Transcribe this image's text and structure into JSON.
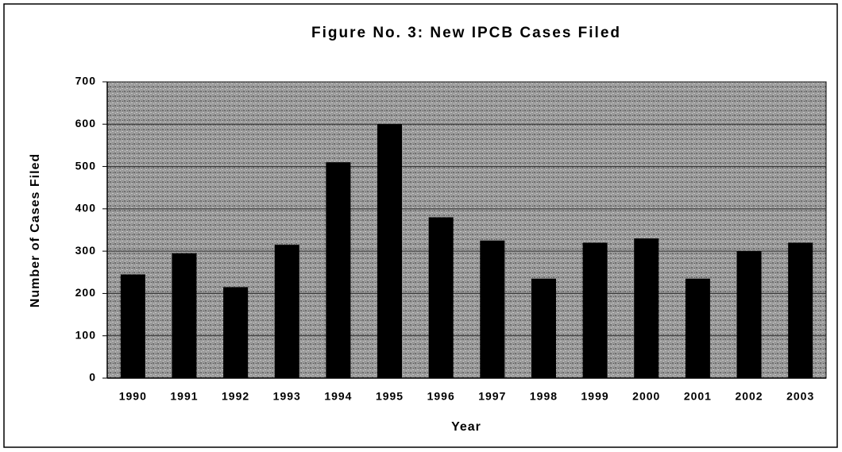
{
  "chart_data": {
    "type": "bar",
    "title": "Figure No. 3:  New IPCB Cases Filed",
    "x_label": "Year",
    "y_label": "Number of Cases Filed",
    "categories": [
      "1990",
      "1991",
      "1992",
      "1993",
      "1994",
      "1995",
      "1996",
      "1997",
      "1998",
      "1999",
      "2000",
      "2001",
      "2002",
      "2003"
    ],
    "values": [
      245,
      295,
      215,
      315,
      510,
      600,
      380,
      325,
      235,
      320,
      330,
      235,
      300,
      320
    ],
    "color": "#000000",
    "ylim": [
      0,
      700
    ],
    "yticks": [
      0,
      100,
      200,
      300,
      400,
      500,
      600,
      700
    ],
    "grid": true
  }
}
